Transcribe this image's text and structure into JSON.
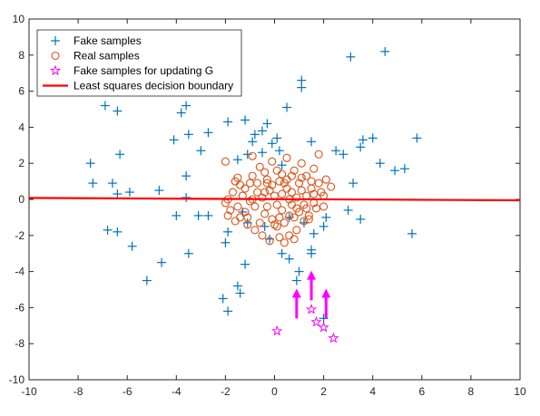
{
  "chart_data": {
    "type": "scatter",
    "xlim": [
      -10,
      10
    ],
    "ylim": [
      -10,
      10
    ],
    "xticks": [
      -10,
      -8,
      -6,
      -4,
      -2,
      0,
      2,
      4,
      6,
      8,
      10
    ],
    "yticks": [
      -10,
      -8,
      -6,
      -4,
      -2,
      0,
      2,
      4,
      6,
      8,
      10
    ],
    "xtick_labels": [
      "-10",
      "-8",
      "-6",
      "-4",
      "-2",
      "0",
      "2",
      "4",
      "6",
      "8",
      "10"
    ],
    "ytick_labels": [
      "-10",
      "-8",
      "-6",
      "-4",
      "-2",
      "0",
      "2",
      "4",
      "6",
      "8",
      "10"
    ],
    "grid": false,
    "legend_position": "top-left",
    "series": [
      {
        "name": "Fake samples",
        "marker": "plus",
        "color": "#0072BD",
        "points": [
          [
            3.1,
            7.9
          ],
          [
            4.5,
            8.2
          ],
          [
            1.1,
            6.6
          ],
          [
            1.1,
            6.2
          ],
          [
            -6.9,
            5.2
          ],
          [
            -6.4,
            4.9
          ],
          [
            -3.6,
            5.2
          ],
          [
            -3.8,
            4.8
          ],
          [
            -1.9,
            4.3
          ],
          [
            -1.2,
            4.4
          ],
          [
            -0.5,
            3.8
          ],
          [
            -0.3,
            4.2
          ],
          [
            0.5,
            5.1
          ],
          [
            -2.7,
            3.7
          ],
          [
            -3.5,
            3.6
          ],
          [
            -4.1,
            3.3
          ],
          [
            -6.3,
            2.5
          ],
          [
            -7.5,
            2.0
          ],
          [
            -7.4,
            0.9
          ],
          [
            -6.6,
            0.9
          ],
          [
            -6.4,
            0.3
          ],
          [
            -5.9,
            0.4
          ],
          [
            -4.7,
            0.5
          ],
          [
            -3.6,
            1.3
          ],
          [
            -3.6,
            0.1
          ],
          [
            -3.0,
            2.7
          ],
          [
            -1.5,
            2.2
          ],
          [
            -1.1,
            2.5
          ],
          [
            -0.9,
            3.2
          ],
          [
            -0.8,
            3.6
          ],
          [
            -0.1,
            3.1
          ],
          [
            0.1,
            3.4
          ],
          [
            0.2,
            2.7
          ],
          [
            0.3,
            1.9
          ],
          [
            -0.5,
            2.6
          ],
          [
            -4.0,
            -0.9
          ],
          [
            -3.1,
            -0.9
          ],
          [
            -1.9,
            -1.8
          ],
          [
            -2.0,
            -2.4
          ],
          [
            -1.1,
            -1.3
          ],
          [
            -0.4,
            -1.5
          ],
          [
            -0.2,
            -2.2
          ],
          [
            0.6,
            -1.0
          ],
          [
            0.3,
            -3.0
          ],
          [
            1.2,
            -1.3
          ],
          [
            1.6,
            -1.9
          ],
          [
            2.0,
            -1.5
          ],
          [
            3.0,
            -0.6
          ],
          [
            3.5,
            -1.1
          ],
          [
            3.2,
            0.9
          ],
          [
            3.5,
            2.9
          ],
          [
            3.6,
            3.3
          ],
          [
            4.0,
            3.4
          ],
          [
            4.3,
            2.0
          ],
          [
            4.9,
            1.6
          ],
          [
            5.3,
            1.7
          ],
          [
            5.8,
            3.4
          ],
          [
            5.6,
            -1.9
          ],
          [
            2.5,
            2.7
          ],
          [
            2.8,
            2.5
          ],
          [
            1.5,
            3.2
          ],
          [
            -6.8,
            -1.7
          ],
          [
            -6.4,
            -1.8
          ],
          [
            -5.8,
            -2.6
          ],
          [
            -5.2,
            -4.5
          ],
          [
            -4.6,
            -3.5
          ],
          [
            -3.5,
            -3.0
          ],
          [
            -2.1,
            -5.5
          ],
          [
            -1.9,
            -6.2
          ],
          [
            -1.5,
            -4.8
          ],
          [
            -1.4,
            -5.2
          ],
          [
            -1.2,
            -3.6
          ],
          [
            0.6,
            -3.3
          ],
          [
            1.5,
            -2.8
          ],
          [
            1.5,
            -3.0
          ],
          [
            -2.7,
            -0.9
          ],
          [
            -1.3,
            -0.7
          ],
          [
            1.0,
            -4.0
          ],
          [
            0.9,
            -4.5
          ],
          [
            2.0,
            -6.6
          ],
          [
            2.1,
            -1.0
          ]
        ]
      },
      {
        "name": "Real samples",
        "marker": "circle",
        "color": "#D95319",
        "points": [
          [
            -2.0,
            2.1
          ],
          [
            -1.5,
            1.2
          ],
          [
            -1.2,
            0.6
          ],
          [
            -0.9,
            1.3
          ],
          [
            -0.4,
            1.5
          ],
          [
            -0.3,
            0.9
          ],
          [
            0.1,
            1.6
          ],
          [
            0.2,
            1.0
          ],
          [
            0.5,
            1.1
          ],
          [
            0.8,
            1.6
          ],
          [
            1.1,
            1.2
          ],
          [
            1.3,
            1.3
          ],
          [
            1.5,
            1.0
          ],
          [
            1.8,
            0.9
          ],
          [
            2.1,
            1.1
          ],
          [
            2.3,
            0.7
          ],
          [
            1.9,
            0.4
          ],
          [
            2.0,
            0.2
          ],
          [
            1.6,
            -0.2
          ],
          [
            1.2,
            -0.3
          ],
          [
            1.0,
            -0.7
          ],
          [
            0.8,
            -1.0
          ],
          [
            0.6,
            -0.9
          ],
          [
            0.4,
            -1.3
          ],
          [
            0.1,
            -1.5
          ],
          [
            -0.1,
            -1.1
          ],
          [
            -0.4,
            -0.8
          ],
          [
            -0.8,
            -0.4
          ],
          [
            -1.0,
            -0.1
          ],
          [
            -1.3,
            0.2
          ],
          [
            -1.5,
            -0.4
          ],
          [
            -1.8,
            -0.6
          ],
          [
            -1.9,
            -0.9
          ],
          [
            -2.0,
            -0.2
          ],
          [
            -1.7,
            0.4
          ],
          [
            -1.4,
            0.8
          ],
          [
            -1.0,
            0.9
          ],
          [
            -0.7,
            0.4
          ],
          [
            -0.5,
            0.1
          ],
          [
            -0.2,
            0.5
          ],
          [
            0.0,
            0.2
          ],
          [
            0.3,
            0.3
          ],
          [
            0.5,
            0.6
          ],
          [
            0.7,
            0.4
          ],
          [
            0.9,
            0.1
          ],
          [
            1.1,
            0.5
          ],
          [
            1.3,
            0.2
          ],
          [
            1.5,
            0.6
          ],
          [
            1.7,
            -0.5
          ],
          [
            1.4,
            -0.9
          ],
          [
            1.2,
            -1.2
          ],
          [
            0.9,
            -1.7
          ],
          [
            0.6,
            -2.0
          ],
          [
            0.2,
            -2.1
          ],
          [
            -0.2,
            -2.3
          ],
          [
            -0.5,
            -2.0
          ],
          [
            -0.8,
            -1.7
          ],
          [
            -1.1,
            -1.4
          ],
          [
            -1.4,
            -1.0
          ],
          [
            -1.6,
            -1.2
          ],
          [
            -1.9,
            0.0
          ],
          [
            -0.6,
            1.8
          ],
          [
            -0.1,
            2.1
          ],
          [
            0.5,
            2.3
          ],
          [
            1.1,
            2.0
          ],
          [
            1.8,
            2.5
          ],
          [
            -0.9,
            2.4
          ],
          [
            0.1,
            -0.3
          ],
          [
            0.3,
            -0.6
          ],
          [
            -0.3,
            -0.4
          ],
          [
            0.4,
            0.9
          ],
          [
            -0.6,
            -1.3
          ],
          [
            1.0,
            0.9
          ],
          [
            1.3,
            -0.5
          ],
          [
            0.9,
            -0.5
          ],
          [
            -1.2,
            -0.7
          ],
          [
            2.0,
            -0.4
          ],
          [
            0.0,
            -1.4
          ],
          [
            0.6,
            0.0
          ],
          [
            -0.9,
            0.0
          ],
          [
            0.2,
            -1.0
          ],
          [
            -1.6,
            1.0
          ],
          [
            0.7,
            1.3
          ],
          [
            -0.3,
            1.1
          ],
          [
            1.6,
            1.7
          ],
          [
            0.4,
            -2.4
          ],
          [
            0.8,
            -2.2
          ],
          [
            -0.1,
            0.8
          ],
          [
            1.4,
            -1.1
          ],
          [
            0.3,
            1.4
          ],
          [
            -1.1,
            -1.0
          ],
          [
            0.7,
            -0.3
          ],
          [
            -0.7,
            0.9
          ],
          [
            1.6,
            0.3
          ],
          [
            -0.4,
            0.4
          ]
        ]
      },
      {
        "name": "Fake samples for updating G",
        "marker": "star",
        "color": "#FF00FF",
        "points": [
          [
            0.1,
            -7.3
          ],
          [
            1.5,
            -6.1
          ],
          [
            1.7,
            -6.8
          ],
          [
            2.0,
            -7.1
          ],
          [
            2.4,
            -7.7
          ]
        ]
      },
      {
        "name": "Least squares decision boundary",
        "marker": "line",
        "color": "#FF0000",
        "points": [
          [
            -10,
            0.08
          ],
          [
            10,
            -0.05
          ]
        ]
      }
    ],
    "arrows": {
      "color": "#FF00FF",
      "items": [
        {
          "x": 0.9,
          "y_from": -6.6,
          "y_to": -5.0
        },
        {
          "x": 1.5,
          "y_from": -5.6,
          "y_to": -4.0
        },
        {
          "x": 2.1,
          "y_from": -6.6,
          "y_to": -5.0
        }
      ]
    },
    "title": "",
    "xlabel": "",
    "ylabel": ""
  }
}
